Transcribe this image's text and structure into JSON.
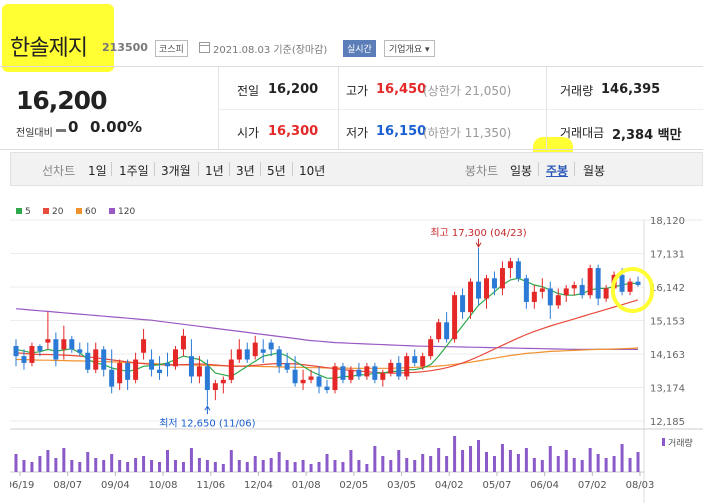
{
  "header": {
    "stock_name": "한솔제지",
    "stock_code": "213500",
    "market": "코스피",
    "date_text": "2021.08.03  기준(장마감)",
    "realtime_label": "실시간",
    "overview_label": "기업개요 ▾"
  },
  "price": {
    "current": "16,200",
    "change_label": "전일대비",
    "change_value": "0",
    "change_pct": "0.00%"
  },
  "quote": {
    "prev_close_label": "전일",
    "prev_close": "16,200",
    "high_label": "고가",
    "high": "16,450",
    "upper_limit": "(상한가 21,050)",
    "volume_label": "거래량",
    "volume": "146,395",
    "open_label": "시가",
    "open": "16,300",
    "low_label": "저가",
    "low": "16,150",
    "lower_limit": "(하한가 11,350)",
    "amount_label": "거래대금",
    "amount": "2,384 백만"
  },
  "period_bar": {
    "line_chart_label": "선차트",
    "line_periods": [
      "1일",
      "1주일",
      "3개월",
      "1년",
      "3년",
      "5년",
      "10년"
    ],
    "candle_chart_label": "봉차트",
    "candle_periods": [
      "일봉",
      "주봉",
      "월봉"
    ],
    "selected_candle_period": "주봉"
  },
  "colors": {
    "up": "#e42727",
    "down": "#2b7bd6",
    "ma5": "#2da84a",
    "ma20": "#e84a3c",
    "ma60": "#f0922e",
    "ma120": "#9b59c4",
    "volume": "#8a5ac8",
    "highlight": "#ffff33"
  },
  "chart_data": {
    "type": "candlestick",
    "legend": [
      {
        "name": "5",
        "color": "#2da84a"
      },
      {
        "name": "20",
        "color": "#e84a3c"
      },
      {
        "name": "60",
        "color": "#f0922e"
      },
      {
        "name": "120",
        "color": "#9b59c4"
      }
    ],
    "y_ticks": [
      "18,120",
      "17,131",
      "16,142",
      "15,153",
      "14,163",
      "13,174",
      "12,185"
    ],
    "y_tick_values": [
      18120,
      17131,
      16142,
      15153,
      14163,
      13174,
      12185
    ],
    "x_ticks": [
      "06/19",
      "08/07",
      "09/04",
      "10/08",
      "11/06",
      "12/04",
      "01/08",
      "02/05",
      "03/05",
      "04/02",
      "05/07",
      "06/04",
      "07/02",
      "08/03"
    ],
    "high_annotation": "최고 17,300 (04/23)",
    "low_annotation": "최저 12,650 (11/06)",
    "volume_label": "거래량",
    "ohlc": [
      [
        14400,
        14600,
        13800,
        14100
      ],
      [
        14100,
        14300,
        13700,
        13900
      ],
      [
        13900,
        14500,
        13800,
        14400
      ],
      [
        14400,
        14450,
        14100,
        14250
      ],
      [
        14500,
        15400,
        14300,
        14600
      ],
      [
        14600,
        14800,
        13800,
        14000
      ],
      [
        14300,
        15000,
        14000,
        14600
      ],
      [
        14600,
        14700,
        14200,
        14300
      ],
      [
        14300,
        14500,
        14100,
        14200
      ],
      [
        14200,
        14500,
        13600,
        13700
      ],
      [
        13700,
        14500,
        13600,
        14300
      ],
      [
        14300,
        14400,
        13500,
        13700
      ],
      [
        13700,
        14300,
        13000,
        13200
      ],
      [
        13300,
        14000,
        13100,
        13900
      ],
      [
        13900,
        14000,
        13100,
        13400
      ],
      [
        13400,
        14200,
        13300,
        14000
      ],
      [
        14200,
        14900,
        14000,
        14600
      ],
      [
        14000,
        14300,
        13500,
        13700
      ],
      [
        13700,
        14100,
        13400,
        13600
      ],
      [
        13900,
        14200,
        13500,
        13800
      ],
      [
        13800,
        14400,
        13700,
        14300
      ],
      [
        14300,
        14900,
        14100,
        14700
      ],
      [
        14100,
        14600,
        13300,
        13500
      ],
      [
        13500,
        14100,
        13300,
        13800
      ],
      [
        13800,
        14000,
        12650,
        13100
      ],
      [
        13100,
        13400,
        12800,
        13300
      ],
      [
        13300,
        13500,
        13000,
        13400
      ],
      [
        13400,
        14300,
        13300,
        14000
      ],
      [
        14000,
        14600,
        13900,
        14300
      ],
      [
        14300,
        14500,
        13900,
        14000
      ],
      [
        14100,
        14700,
        14000,
        14500
      ],
      [
        14300,
        14600,
        13900,
        14200
      ],
      [
        14500,
        14600,
        14100,
        14300
      ],
      [
        14300,
        14400,
        13600,
        13800
      ],
      [
        13900,
        14200,
        13600,
        13700
      ],
      [
        13700,
        14100,
        13200,
        13300
      ],
      [
        13300,
        13700,
        13100,
        13400
      ],
      [
        13400,
        13700,
        13300,
        13500
      ],
      [
        13500,
        13800,
        13000,
        13200
      ],
      [
        13200,
        13400,
        13000,
        13100
      ],
      [
        13100,
        13900,
        13000,
        13800
      ],
      [
        13800,
        13900,
        13300,
        13400
      ],
      [
        13400,
        13800,
        13300,
        13700
      ],
      [
        13700,
        13900,
        13400,
        13500
      ],
      [
        13500,
        13900,
        13400,
        13800
      ],
      [
        13800,
        13900,
        13300,
        13400
      ],
      [
        13400,
        13700,
        13200,
        13600
      ],
      [
        13600,
        14000,
        13500,
        13900
      ],
      [
        13900,
        14100,
        13400,
        13500
      ],
      [
        13500,
        14200,
        13400,
        14100
      ],
      [
        14100,
        14300,
        13800,
        13900
      ],
      [
        13800,
        14200,
        13700,
        14100
      ],
      [
        14100,
        14700,
        14000,
        14600
      ],
      [
        14600,
        15200,
        14500,
        15100
      ],
      [
        15100,
        15400,
        14500,
        14600
      ],
      [
        14600,
        16000,
        14500,
        15900
      ],
      [
        15900,
        16100,
        15200,
        15400
      ],
      [
        15400,
        16400,
        15200,
        16300
      ],
      [
        16300,
        17300,
        15600,
        15800
      ],
      [
        15800,
        16500,
        15500,
        16400
      ],
      [
        16400,
        16600,
        15900,
        16100
      ],
      [
        16100,
        16900,
        15900,
        16700
      ],
      [
        16700,
        17000,
        16400,
        16900
      ],
      [
        16900,
        17000,
        16300,
        16400
      ],
      [
        16400,
        16500,
        15500,
        15700
      ],
      [
        15700,
        16200,
        15500,
        16000
      ],
      [
        16000,
        16400,
        15800,
        16100
      ],
      [
        16100,
        16300,
        15200,
        15600
      ],
      [
        15600,
        16100,
        15500,
        15900
      ],
      [
        15900,
        16200,
        15700,
        16100
      ],
      [
        16100,
        16300,
        15900,
        16200
      ],
      [
        16200,
        16400,
        15800,
        15900
      ],
      [
        15900,
        16800,
        15800,
        16700
      ],
      [
        16700,
        16800,
        15600,
        15800
      ],
      [
        15800,
        16200,
        15700,
        16100
      ],
      [
        16100,
        16600,
        15900,
        16500
      ],
      [
        16500,
        16700,
        15900,
        16000
      ],
      [
        16000,
        16400,
        15900,
        16300
      ],
      [
        16300,
        16450,
        16150,
        16200
      ]
    ],
    "ma5": [
      14300,
      14250,
      14200,
      14230,
      14300,
      14250,
      14280,
      14320,
      14200,
      14000,
      13900,
      13850,
      13750,
      13700,
      13650,
      13700,
      13800,
      13820,
      13850,
      13900,
      14000,
      14100,
      14050,
      14000,
      13850,
      13600,
      13550,
      13500,
      13650,
      13800,
      13950,
      14100,
      14150,
      14200,
      14100,
      13950,
      13800,
      13650,
      13550,
      13450,
      13450,
      13500,
      13500,
      13550,
      13550,
      13600,
      13600,
      13650,
      13650,
      13700,
      13700,
      13750,
      13850,
      14100,
      14400,
      14700,
      15000,
      15300,
      15600,
      15800,
      16000,
      16200,
      16350,
      16400,
      16300,
      16200,
      16150,
      16050,
      15950,
      15900,
      15900,
      15950,
      16050,
      16100,
      16100,
      16150,
      16200,
      16250,
      16250
    ],
    "ma20": [
      14200,
      14180,
      14160,
      14150,
      14150,
      14140,
      14130,
      14120,
      14100,
      14080,
      14050,
      14020,
      13990,
      13960,
      13930,
      13900,
      13880,
      13860,
      13850,
      13840,
      13840,
      13850,
      13860,
      13870,
      13860,
      13840,
      13820,
      13800,
      13800,
      13810,
      13830,
      13850,
      13870,
      13880,
      13880,
      13870,
      13850,
      13820,
      13790,
      13760,
      13730,
      13700,
      13680,
      13660,
      13640,
      13620,
      13610,
      13600,
      13600,
      13610,
      13620,
      13640,
      13670,
      13710,
      13760,
      13820,
      13900,
      13990,
      14090,
      14200,
      14310,
      14420,
      14530,
      14640,
      14740,
      14830,
      14910,
      14990,
      15060,
      15130,
      15200,
      15270,
      15340,
      15410,
      15480,
      15550,
      15620,
      15690,
      15760
    ],
    "ma60": [
      14000,
      14000,
      13990,
      13980,
      13980,
      13970,
      13970,
      13960,
      13960,
      13950,
      13950,
      13940,
      13930,
      13920,
      13910,
      13900,
      13890,
      13880,
      13870,
      13860,
      13850,
      13840,
      13840,
      13830,
      13830,
      13820,
      13820,
      13810,
      13810,
      13800,
      13800,
      13790,
      13790,
      13780,
      13780,
      13770,
      13770,
      13760,
      13760,
      13750,
      13750,
      13750,
      13740,
      13740,
      13740,
      13740,
      13740,
      13740,
      13750,
      13760,
      13770,
      13780,
      13790,
      13810,
      13830,
      13860,
      13890,
      13920,
      13960,
      14000,
      14040,
      14080,
      14120,
      14150,
      14180,
      14200,
      14220,
      14240,
      14250,
      14260,
      14270,
      14280,
      14290,
      14300,
      14300,
      14310,
      14320,
      14330,
      14340
    ],
    "ma120": [
      15500,
      15480,
      15460,
      15440,
      15420,
      15400,
      15380,
      15360,
      15340,
      15320,
      15300,
      15280,
      15260,
      15240,
      15220,
      15200,
      15180,
      15160,
      15130,
      15100,
      15070,
      15040,
      15010,
      14980,
      14950,
      14920,
      14890,
      14860,
      14830,
      14800,
      14770,
      14740,
      14710,
      14680,
      14650,
      14620,
      14590,
      14560,
      14540,
      14520,
      14500,
      14490,
      14480,
      14470,
      14460,
      14450,
      14440,
      14430,
      14420,
      14410,
      14400,
      14395,
      14390,
      14385,
      14380,
      14375,
      14370,
      14365,
      14360,
      14355,
      14350,
      14345,
      14340,
      14335,
      14330,
      14325,
      14320,
      14315,
      14310,
      14305,
      14300,
      14300,
      14300,
      14300,
      14300,
      14300,
      14300,
      14300,
      14300
    ],
    "volume": [
      0.45,
      0.3,
      0.25,
      0.4,
      0.55,
      0.35,
      0.6,
      0.3,
      0.25,
      0.5,
      0.35,
      0.3,
      0.45,
      0.3,
      0.25,
      0.35,
      0.4,
      0.3,
      0.25,
      0.55,
      0.3,
      0.25,
      0.6,
      0.35,
      0.3,
      0.25,
      0.2,
      0.55,
      0.3,
      0.25,
      0.4,
      0.3,
      0.35,
      0.5,
      0.3,
      0.25,
      0.3,
      0.2,
      0.25,
      0.45,
      0.3,
      0.25,
      0.55,
      0.3,
      0.2,
      0.65,
      0.4,
      0.3,
      0.55,
      0.35,
      0.3,
      0.45,
      0.4,
      0.6,
      0.4,
      0.9,
      0.55,
      0.65,
      0.8,
      0.5,
      0.4,
      0.7,
      0.55,
      0.45,
      0.6,
      0.35,
      0.3,
      0.65,
      0.4,
      0.55,
      0.35,
      0.3,
      0.6,
      0.45,
      0.35,
      0.4,
      0.7,
      0.35,
      0.5
    ]
  }
}
